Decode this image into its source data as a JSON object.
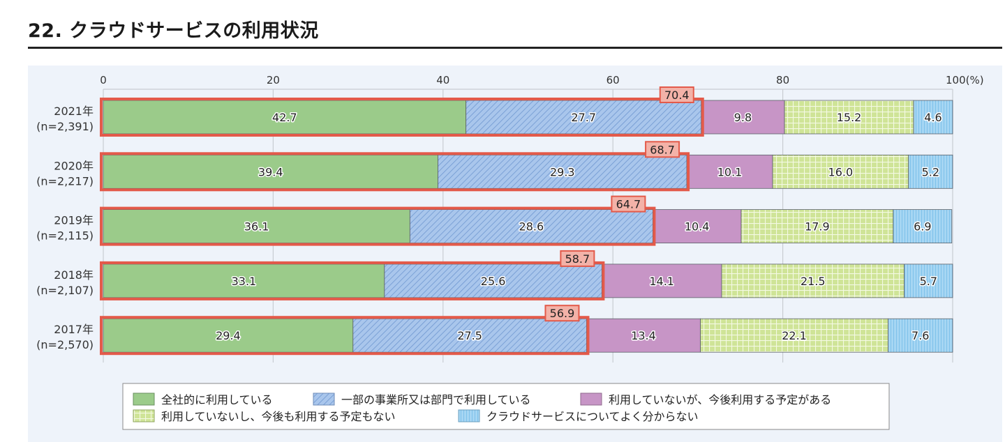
{
  "title": "22. クラウドサービスの利用状況",
  "chart_data": {
    "type": "bar",
    "orientation": "horizontal",
    "stacked": true,
    "title": "22. クラウドサービスの利用状況",
    "xlim": [
      0,
      100
    ],
    "x_ticks": [
      "0",
      "20",
      "40",
      "60",
      "80",
      "100(%)"
    ],
    "x_tick_values": [
      0,
      20,
      40,
      60,
      80,
      100
    ],
    "grid": true,
    "legend_position": "bottom",
    "categories": [
      {
        "year": "2021年",
        "n": "(n=2,391)"
      },
      {
        "year": "2020年",
        "n": "(n=2,217)"
      },
      {
        "year": "2019年",
        "n": "(n=2,115)"
      },
      {
        "year": "2018年",
        "n": "(n=2,107)"
      },
      {
        "year": "2017年",
        "n": "(n=2,570)"
      }
    ],
    "series": [
      {
        "name": "全社的に利用している",
        "color": "#9bcb8a",
        "pattern": "solid",
        "values": [
          42.7,
          39.4,
          36.1,
          33.1,
          29.4
        ]
      },
      {
        "name": "一部の事業所又は部門で利用している",
        "color": "#a9c6ec",
        "pattern": "diagonal",
        "values": [
          27.7,
          29.3,
          28.6,
          25.6,
          27.5
        ]
      },
      {
        "name": "利用していないが、今後利用する予定がある",
        "color": "#c795c6",
        "pattern": "solid",
        "values": [
          9.8,
          10.1,
          10.4,
          14.1,
          13.4
        ]
      },
      {
        "name": "利用していないし、今後も利用する予定もない",
        "color": "#d3e79a",
        "pattern": "grid",
        "values": [
          15.2,
          16.0,
          17.9,
          21.5,
          22.1
        ]
      },
      {
        "name": "クラウドサービスについてよく分からない",
        "color": "#a6d6f3",
        "pattern": "vertical",
        "values": [
          4.6,
          5.2,
          6.9,
          5.7,
          7.6
        ]
      }
    ],
    "value_labels": [
      [
        "42.7",
        "27.7",
        "9.8",
        "15.2",
        "4.6"
      ],
      [
        "39.4",
        "29.3",
        "10.1",
        "16.0",
        "5.2"
      ],
      [
        "36.1",
        "28.6",
        "10.4",
        "17.9",
        "6.9"
      ],
      [
        "33.1",
        "25.6",
        "14.1",
        "21.5",
        "5.7"
      ],
      [
        "29.4",
        "27.5",
        "13.4",
        "22.1",
        "7.6"
      ]
    ],
    "highlight_totals": [
      "70.4",
      "68.7",
      "64.7",
      "58.7",
      "56.9"
    ],
    "highlight_totals_values": [
      70.4,
      68.7,
      64.7,
      58.7,
      56.9
    ],
    "highlight_color": "#e35a4a"
  }
}
